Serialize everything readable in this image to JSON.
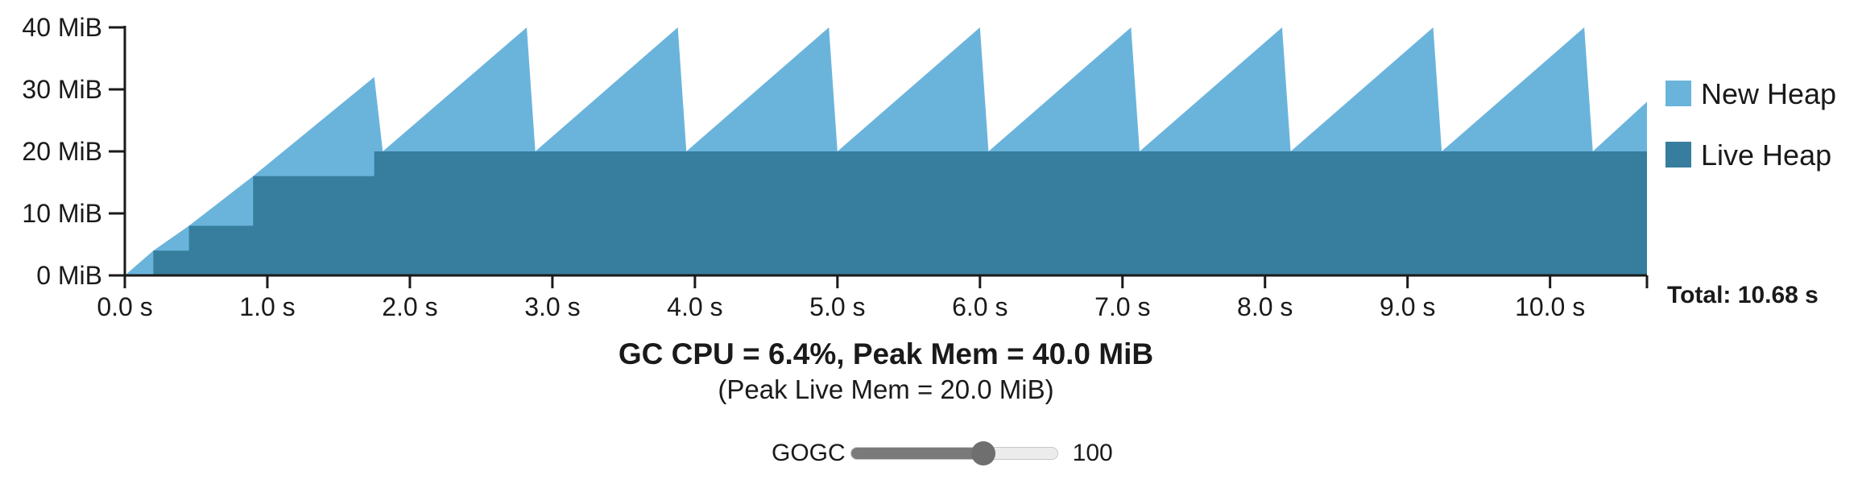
{
  "chart_data": {
    "type": "area",
    "series": [
      {
        "name": "Live Heap",
        "color": "#377d9d",
        "points": [
          [
            0,
            0
          ],
          [
            0.2,
            0
          ],
          [
            0.2,
            4
          ],
          [
            0.45,
            4
          ],
          [
            0.45,
            8
          ],
          [
            0.9,
            8
          ],
          [
            0.9,
            16
          ],
          [
            1.75,
            16
          ],
          [
            1.75,
            20
          ],
          [
            10.68,
            20
          ]
        ]
      },
      {
        "name": "New Heap",
        "color": "#6ab4dc",
        "points": [
          [
            0,
            0
          ],
          [
            0.2,
            4
          ],
          [
            0.2,
            4
          ],
          [
            0.45,
            8
          ],
          [
            0.45,
            8
          ],
          [
            0.9,
            16
          ],
          [
            0.9,
            16
          ],
          [
            1.75,
            32
          ],
          [
            1.81,
            20
          ],
          [
            2.82,
            40
          ],
          [
            2.88,
            20
          ],
          [
            3.88,
            40
          ],
          [
            3.94,
            20
          ],
          [
            4.94,
            40
          ],
          [
            5.0,
            20
          ],
          [
            6.0,
            40
          ],
          [
            6.06,
            20
          ],
          [
            7.06,
            40
          ],
          [
            7.12,
            20
          ],
          [
            8.12,
            40
          ],
          [
            8.18,
            20
          ],
          [
            9.18,
            40
          ],
          [
            9.24,
            20
          ],
          [
            10.24,
            40
          ],
          [
            10.3,
            20
          ],
          [
            10.68,
            28
          ]
        ]
      }
    ],
    "x_ticks": [
      {
        "value": 0,
        "label": "0.0 s"
      },
      {
        "value": 1,
        "label": "1.0 s"
      },
      {
        "value": 2,
        "label": "2.0 s"
      },
      {
        "value": 3,
        "label": "3.0 s"
      },
      {
        "value": 4,
        "label": "4.0 s"
      },
      {
        "value": 5,
        "label": "5.0 s"
      },
      {
        "value": 6,
        "label": "6.0 s"
      },
      {
        "value": 7,
        "label": "7.0 s"
      },
      {
        "value": 8,
        "label": "8.0 s"
      },
      {
        "value": 9,
        "label": "9.0 s"
      },
      {
        "value": 10,
        "label": "10.0 s"
      }
    ],
    "y_ticks": [
      {
        "value": 0,
        "label": "0 MiB"
      },
      {
        "value": 10,
        "label": "10 MiB"
      },
      {
        "value": 20,
        "label": "20 MiB"
      },
      {
        "value": 30,
        "label": "30 MiB"
      },
      {
        "value": 40,
        "label": "40 MiB"
      }
    ],
    "xlim": [
      0,
      10.68
    ],
    "ylim": [
      0,
      40
    ],
    "total_label": "Total: 10.68 s",
    "legend": [
      {
        "label": "New Heap",
        "color": "#6ab4dc"
      },
      {
        "label": "Live Heap",
        "color": "#377d9d"
      }
    ],
    "legend_position": "right",
    "grid": false
  },
  "stats": {
    "main": "GC CPU = 6.4%, Peak Mem = 40.0 MiB",
    "sub": "(Peak Live Mem = 20.0 MiB)"
  },
  "gogc": {
    "label": "GOGC",
    "value": "100",
    "fraction": 0.64
  }
}
